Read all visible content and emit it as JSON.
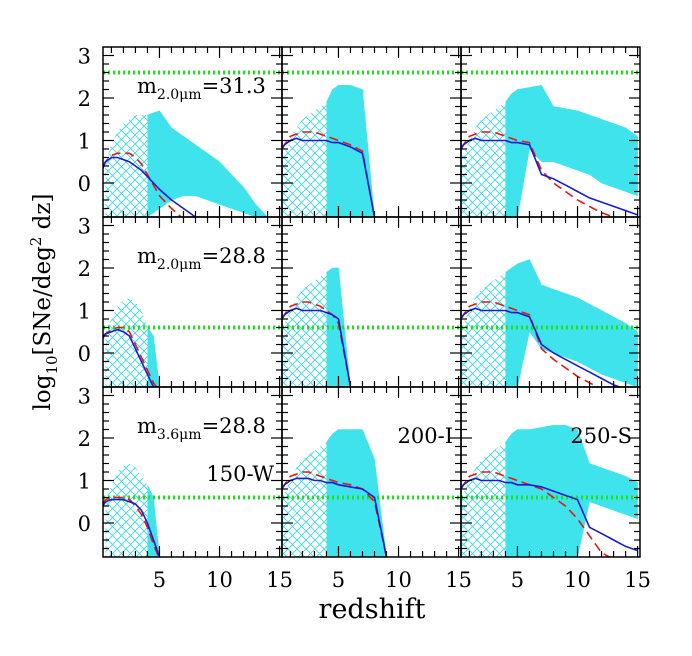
{
  "chart_data": {
    "type": "line",
    "xlabel": "redshift",
    "ylabel": [
      "log",
      "10",
      "[SNe/deg",
      "2",
      " dz]"
    ],
    "xlim": [
      0.3,
      15.2
    ],
    "ylim": [
      -0.8,
      3.2
    ],
    "xticks": [
      5,
      10,
      15
    ],
    "yticks": [
      0,
      1,
      2,
      3
    ],
    "xminor": [
      1,
      2,
      3,
      4,
      6,
      7,
      8,
      9,
      11,
      12,
      13,
      14
    ],
    "yminor": [
      -0.6,
      -0.4,
      -0.2,
      0.2,
      0.4,
      0.6,
      0.8,
      1.2,
      1.4,
      1.6,
      1.8,
      2.2,
      2.4,
      2.6,
      2.8
    ],
    "grid": false,
    "line_colors": [
      "#1a1ad0",
      "#e01818"
    ],
    "line_dashed": [
      false,
      true
    ],
    "band_color": "#3fe3ec",
    "hatch_color": "#3fd6e0",
    "threshold_color": "#1ee01e",
    "hatch_split": 4,
    "x": [
      0.3,
      0.5,
      1,
      1.5,
      2,
      2.5,
      3,
      3.5,
      4,
      4.5,
      5,
      6,
      7,
      8,
      9,
      10,
      11,
      12,
      13,
      14,
      15
    ],
    "panels": [
      {
        "threshold": 2.6,
        "annotation": [
          "m",
          "2.0μm",
          "=31.3"
        ],
        "lines": [
          [
            0.35,
            0.5,
            0.6,
            0.6,
            0.55,
            0.5,
            0.4,
            0.3,
            0.15,
            0.0,
            -0.15,
            -0.4,
            -0.6,
            -0.8,
            -0.9,
            null,
            null,
            null,
            null,
            null,
            null
          ],
          [
            0.4,
            0.5,
            0.65,
            0.7,
            0.7,
            0.7,
            0.6,
            0.45,
            0.2,
            -0.05,
            -0.3,
            -0.6,
            -0.85,
            null,
            null,
            null,
            null,
            null,
            null,
            null,
            null
          ]
        ],
        "band_upper": [
          null,
          0.5,
          0.9,
          1.2,
          1.4,
          1.5,
          1.6,
          1.6,
          1.6,
          1.65,
          1.7,
          1.3,
          1.1,
          0.9,
          0.7,
          0.5,
          0.2,
          -0.1,
          -0.5,
          -0.8,
          null
        ],
        "band_lower": [
          null,
          -0.8,
          -0.8,
          -0.8,
          -0.8,
          -0.8,
          -0.8,
          -0.8,
          -0.8,
          -0.7,
          -0.6,
          -0.4,
          -0.3,
          -0.3,
          -0.4,
          -0.5,
          -0.6,
          -0.7,
          -0.8,
          -0.8,
          null
        ]
      },
      {
        "threshold": 2.6,
        "lines": [
          [
            0.8,
            0.9,
            1.0,
            1.05,
            1.0,
            1.0,
            1.0,
            1.0,
            1.0,
            0.95,
            0.95,
            0.85,
            0.7,
            -0.8,
            null,
            null,
            null,
            null,
            null,
            null,
            null
          ],
          [
            0.8,
            0.9,
            1.1,
            1.15,
            1.2,
            1.2,
            1.2,
            1.15,
            1.1,
            1.05,
            1.0,
            0.9,
            0.75,
            -0.8,
            null,
            null,
            null,
            null,
            null,
            null,
            null
          ]
        ],
        "band_upper": [
          0.6,
          0.7,
          1.0,
          1.3,
          1.5,
          1.6,
          1.7,
          1.8,
          1.9,
          2.2,
          2.3,
          2.3,
          2.2,
          -0.8,
          null,
          null,
          null,
          null,
          null,
          null,
          null
        ],
        "band_lower": [
          -0.8,
          -0.8,
          -0.8,
          -0.8,
          -0.8,
          -0.8,
          -0.8,
          -0.8,
          -0.8,
          -0.8,
          -0.8,
          -0.8,
          -0.8,
          -0.8,
          null,
          null,
          null,
          null,
          null,
          null,
          null
        ]
      },
      {
        "threshold": 2.6,
        "lines": [
          [
            0.8,
            0.9,
            1.0,
            1.05,
            1.0,
            1.0,
            1.0,
            1.0,
            1.0,
            0.95,
            0.95,
            0.9,
            0.2,
            0.1,
            -0.05,
            -0.2,
            -0.35,
            -0.45,
            -0.55,
            -0.65,
            -0.75
          ],
          [
            0.8,
            0.9,
            1.1,
            1.15,
            1.2,
            1.2,
            1.2,
            1.15,
            1.1,
            1.05,
            1.0,
            0.95,
            0.3,
            0.0,
            -0.2,
            -0.4,
            -0.55,
            -0.7,
            -0.8,
            -0.9,
            null
          ]
        ],
        "band_upper": [
          0.6,
          0.7,
          1.0,
          1.3,
          1.5,
          1.6,
          1.7,
          1.8,
          1.9,
          2.1,
          2.2,
          2.25,
          2.3,
          1.8,
          1.75,
          1.7,
          1.6,
          1.5,
          1.4,
          1.3,
          1.1
        ],
        "band_lower": [
          -0.8,
          -0.8,
          -0.8,
          -0.8,
          -0.8,
          -0.8,
          -0.8,
          -0.8,
          -0.8,
          -0.8,
          -0.8,
          0.8,
          0.5,
          0.5,
          0.4,
          0.3,
          0.2,
          0.0,
          -0.1,
          -0.2,
          -0.3
        ]
      },
      {
        "threshold": 0.6,
        "annotation": [
          "m",
          "2.0μm",
          "=28.8"
        ],
        "lines": [
          [
            0.35,
            0.45,
            0.5,
            0.55,
            0.5,
            0.4,
            0.1,
            -0.2,
            -0.5,
            -0.8,
            null,
            null,
            null,
            null,
            null,
            null,
            null,
            null,
            null,
            null,
            null
          ],
          [
            0.4,
            0.45,
            0.55,
            0.6,
            0.6,
            0.5,
            0.2,
            -0.1,
            -0.4,
            -0.7,
            -0.9,
            null,
            null,
            null,
            null,
            null,
            null,
            null,
            null,
            null,
            null
          ]
        ],
        "band_upper": [
          null,
          0.5,
          0.8,
          1.1,
          1.25,
          1.3,
          1.2,
          1.0,
          0.6,
          0.4,
          -0.8,
          null,
          null,
          null,
          null,
          null,
          null,
          null,
          null,
          null,
          null
        ],
        "band_lower": [
          null,
          -0.8,
          -0.8,
          -0.8,
          -0.8,
          -0.8,
          -0.8,
          -0.8,
          -0.8,
          -0.8,
          -0.8,
          null,
          null,
          null,
          null,
          null,
          null,
          null,
          null,
          null,
          null
        ]
      },
      {
        "threshold": 0.6,
        "lines": [
          [
            0.8,
            0.9,
            1.0,
            1.05,
            1.0,
            1.0,
            1.0,
            1.0,
            0.95,
            0.9,
            0.8,
            -0.8,
            null,
            null,
            null,
            null,
            null,
            null,
            null,
            null,
            null
          ],
          [
            0.8,
            0.9,
            1.1,
            1.15,
            1.2,
            1.2,
            1.15,
            1.1,
            1.0,
            0.9,
            0.7,
            -0.8,
            null,
            null,
            null,
            null,
            null,
            null,
            null,
            null,
            null
          ]
        ],
        "band_upper": [
          0.6,
          0.7,
          1.0,
          1.3,
          1.5,
          1.6,
          1.7,
          1.8,
          1.9,
          2.0,
          2.0,
          -0.8,
          null,
          null,
          null,
          null,
          null,
          null,
          null,
          null,
          null
        ],
        "band_lower": [
          -0.8,
          -0.8,
          -0.8,
          -0.8,
          -0.8,
          -0.8,
          -0.8,
          -0.8,
          -0.8,
          -0.8,
          -0.8,
          -0.8,
          null,
          null,
          null,
          null,
          null,
          null,
          null,
          null,
          null
        ]
      },
      {
        "threshold": 0.6,
        "lines": [
          [
            0.8,
            0.9,
            1.0,
            1.05,
            1.0,
            1.0,
            1.0,
            1.0,
            1.0,
            0.95,
            0.95,
            0.85,
            0.2,
            0.0,
            -0.15,
            -0.3,
            -0.45,
            -0.6,
            -0.75,
            -0.85,
            null
          ],
          [
            0.8,
            0.9,
            1.1,
            1.15,
            1.2,
            1.2,
            1.2,
            1.15,
            1.1,
            1.05,
            1.0,
            0.9,
            0.1,
            -0.15,
            -0.35,
            -0.55,
            -0.7,
            -0.85,
            null,
            null,
            null
          ]
        ],
        "band_upper": [
          0.6,
          0.7,
          1.0,
          1.3,
          1.5,
          1.6,
          1.7,
          1.8,
          1.9,
          2.0,
          2.1,
          2.2,
          1.6,
          1.5,
          1.4,
          1.3,
          1.15,
          1.0,
          0.85,
          0.7,
          0.5
        ],
        "band_lower": [
          -0.8,
          -0.8,
          -0.8,
          -0.8,
          -0.8,
          -0.8,
          -0.8,
          -0.8,
          -0.8,
          -0.8,
          -0.8,
          0.5,
          0.1,
          0.0,
          -0.1,
          -0.2,
          -0.35,
          -0.5,
          -0.6,
          -0.7,
          -0.8
        ]
      },
      {
        "threshold": 0.6,
        "annotation": [
          "m",
          "3.6μm",
          "=28.8"
        ],
        "filter": "150-W",
        "lines": [
          [
            0.4,
            0.5,
            0.55,
            0.55,
            0.55,
            0.5,
            0.45,
            0.3,
            0.0,
            -0.4,
            -0.8,
            null,
            null,
            null,
            null,
            null,
            null,
            null,
            null,
            null,
            null
          ],
          [
            0.45,
            0.55,
            0.6,
            0.6,
            0.6,
            0.55,
            0.4,
            0.2,
            -0.1,
            -0.5,
            -0.85,
            null,
            null,
            null,
            null,
            null,
            null,
            null,
            null,
            null,
            null
          ]
        ],
        "band_upper": [
          null,
          0.5,
          0.9,
          1.2,
          1.35,
          1.4,
          1.3,
          1.1,
          0.9,
          0.6,
          -0.8,
          null,
          null,
          null,
          null,
          null,
          null,
          null,
          null,
          null,
          null
        ],
        "band_lower": [
          null,
          -0.8,
          -0.8,
          -0.8,
          -0.8,
          -0.8,
          -0.8,
          -0.8,
          -0.8,
          -0.8,
          -0.8,
          null,
          null,
          null,
          null,
          null,
          null,
          null,
          null,
          null,
          null
        ]
      },
      {
        "threshold": 0.6,
        "filter": "200-I",
        "lines": [
          [
            0.8,
            0.9,
            1.0,
            1.05,
            1.05,
            1.05,
            1.0,
            1.0,
            0.95,
            0.95,
            0.9,
            0.85,
            0.8,
            0.6,
            -0.8,
            null,
            null,
            null,
            null,
            null,
            null
          ],
          [
            0.8,
            0.9,
            1.1,
            1.15,
            1.2,
            1.2,
            1.15,
            1.1,
            1.05,
            1.0,
            0.95,
            0.9,
            0.8,
            0.5,
            -0.8,
            null,
            null,
            null,
            null,
            null,
            null
          ]
        ],
        "band_upper": [
          0.6,
          0.7,
          1.0,
          1.3,
          1.5,
          1.6,
          1.7,
          1.8,
          1.9,
          2.1,
          2.2,
          2.2,
          2.2,
          1.5,
          -0.8,
          null,
          null,
          null,
          null,
          null,
          null
        ],
        "band_lower": [
          -0.8,
          -0.8,
          -0.8,
          -0.8,
          -0.8,
          -0.8,
          -0.8,
          -0.8,
          -0.8,
          -0.8,
          -0.8,
          -0.8,
          -0.8,
          -0.8,
          -0.8,
          null,
          null,
          null,
          null,
          null,
          null
        ]
      },
      {
        "threshold": 0.6,
        "filter": "250-S",
        "lines": [
          [
            0.8,
            0.9,
            1.0,
            1.05,
            1.0,
            1.0,
            1.0,
            1.0,
            0.95,
            0.95,
            0.9,
            0.9,
            0.85,
            0.75,
            0.65,
            0.55,
            -0.1,
            -0.25,
            -0.4,
            -0.55,
            -0.65
          ],
          [
            0.8,
            0.9,
            1.1,
            1.15,
            1.2,
            1.2,
            1.2,
            1.15,
            1.1,
            1.05,
            1.0,
            0.9,
            0.8,
            0.6,
            0.4,
            0.1,
            -0.3,
            -0.7,
            -0.85,
            null,
            null
          ]
        ],
        "band_upper": [
          0.6,
          0.7,
          1.0,
          1.3,
          1.5,
          1.6,
          1.7,
          1.8,
          1.9,
          2.1,
          2.2,
          2.2,
          2.25,
          2.3,
          2.3,
          2.2,
          1.4,
          1.3,
          1.2,
          1.1,
          0.95
        ],
        "band_lower": [
          -0.8,
          -0.8,
          -0.8,
          -0.8,
          -0.8,
          -0.8,
          -0.8,
          -0.8,
          -0.8,
          -0.8,
          -0.8,
          -0.8,
          -0.8,
          -0.8,
          -0.8,
          -0.8,
          0.5,
          0.4,
          0.3,
          0.2,
          0.1
        ]
      }
    ]
  }
}
